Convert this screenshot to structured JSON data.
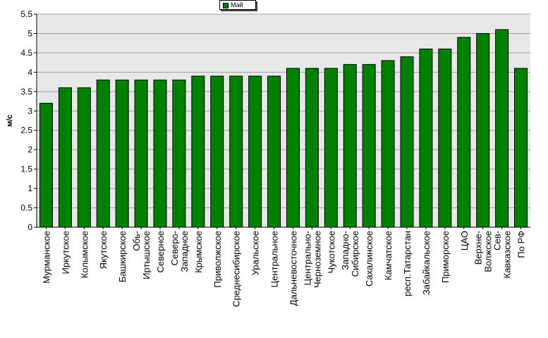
{
  "chart_data": {
    "type": "bar",
    "title": "",
    "xlabel": "",
    "ylabel": "м/с",
    "ylim": [
      0,
      5.5
    ],
    "yticks": [
      "0",
      "0.5",
      "1",
      "1.5",
      "2",
      "2.5",
      "3",
      "3.5",
      "4",
      "4.5",
      "5",
      "5.5"
    ],
    "grid": true,
    "legend_position": "top-center",
    "bar_color": "#008000",
    "plot_background": "#e8e8e8",
    "categories": [
      [
        "Мурманское"
      ],
      [
        "Иркутское"
      ],
      [
        "Колымское"
      ],
      [
        "Якутское"
      ],
      [
        "Башкирское"
      ],
      [
        "Обь-",
        "Иртышское"
      ],
      [
        "Северное"
      ],
      [
        "Северо-",
        "Западное"
      ],
      [
        "Крымское"
      ],
      [
        "Приволжское"
      ],
      [
        "Среднесибирское"
      ],
      [
        "Уральское"
      ],
      [
        "Центральное"
      ],
      [
        "Дальневосточное"
      ],
      [
        "Центрально-",
        "Черноземное"
      ],
      [
        "Чукотское"
      ],
      [
        "Западно-",
        "Сибирское"
      ],
      [
        "Сахалинское"
      ],
      [
        "Камчатское"
      ],
      [
        "респ.Татарстан"
      ],
      [
        "Забайкальское"
      ],
      [
        "Приморское"
      ],
      [
        "ЦАО"
      ],
      [
        "Верхне-",
        "Волжское"
      ],
      [
        "Сев-",
        "Кавказское"
      ],
      [
        "По РФ"
      ]
    ],
    "series": [
      {
        "name": "Май",
        "values": [
          3.2,
          3.6,
          3.6,
          3.8,
          3.8,
          3.8,
          3.8,
          3.8,
          3.9,
          3.9,
          3.9,
          3.9,
          3.9,
          4.1,
          4.1,
          4.1,
          4.2,
          4.2,
          4.3,
          4.4,
          4.6,
          4.6,
          4.9,
          5.0,
          5.1,
          4.1
        ]
      }
    ]
  }
}
